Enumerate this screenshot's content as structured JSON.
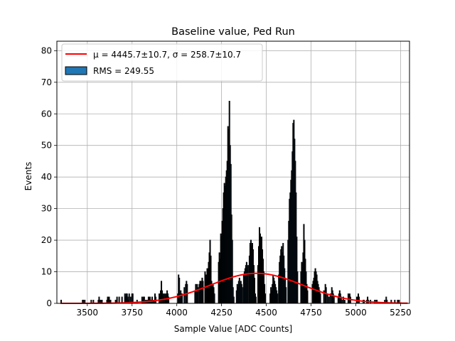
{
  "chart_data": {
    "type": "bar",
    "title": "Baseline value, Ped Run",
    "xlabel": "Sample Value [ADC Counts]",
    "ylabel": "Events",
    "xlim": [
      3330,
      5300
    ],
    "ylim": [
      0,
      83
    ],
    "xticks": [
      3500,
      3750,
      4000,
      4250,
      4500,
      4750,
      5000,
      5250
    ],
    "yticks": [
      0,
      10,
      20,
      30,
      40,
      50,
      60,
      70,
      80
    ],
    "grid": true,
    "legend_position": "top-left",
    "legend": [
      {
        "label": "μ = 4445.7±10.7, σ = 258.7±10.7",
        "kind": "line",
        "color": "#ff0000"
      },
      {
        "label": "RMS = 249.55",
        "kind": "patch",
        "color": "#1f77b4"
      }
    ],
    "fit": {
      "type": "gaussian",
      "mu": 4445.7,
      "mu_err": 10.7,
      "sigma": 258.7,
      "sigma_err": 10.7,
      "amplitude": 9.5,
      "color": "#ff0000"
    },
    "histogram": {
      "bin_width": 4,
      "fill_color": "#1f77b4",
      "edge_color": "#000000",
      "bins": [
        [
          3352,
          1
        ],
        [
          3356,
          0
        ],
        [
          3472,
          1
        ],
        [
          3476,
          1
        ],
        [
          3484,
          1
        ],
        [
          3520,
          1
        ],
        [
          3532,
          1
        ],
        [
          3560,
          1
        ],
        [
          3564,
          2
        ],
        [
          3572,
          1
        ],
        [
          3580,
          1
        ],
        [
          3608,
          1
        ],
        [
          3612,
          2
        ],
        [
          3620,
          2
        ],
        [
          3628,
          1
        ],
        [
          3656,
          1
        ],
        [
          3664,
          2
        ],
        [
          3676,
          2
        ],
        [
          3692,
          2
        ],
        [
          3708,
          3
        ],
        [
          3712,
          2
        ],
        [
          3716,
          3
        ],
        [
          3720,
          3
        ],
        [
          3724,
          2
        ],
        [
          3728,
          1
        ],
        [
          3732,
          3
        ],
        [
          3740,
          2
        ],
        [
          3748,
          3
        ],
        [
          3752,
          3
        ],
        [
          3776,
          1
        ],
        [
          3804,
          2
        ],
        [
          3808,
          1
        ],
        [
          3812,
          2
        ],
        [
          3816,
          2
        ],
        [
          3824,
          1
        ],
        [
          3832,
          1
        ],
        [
          3840,
          2
        ],
        [
          3848,
          2
        ],
        [
          3856,
          1
        ],
        [
          3860,
          2
        ],
        [
          3868,
          1
        ],
        [
          3876,
          3
        ],
        [
          3880,
          2
        ],
        [
          3900,
          3
        ],
        [
          3904,
          2
        ],
        [
          3908,
          4
        ],
        [
          3912,
          7
        ],
        [
          3916,
          4
        ],
        [
          3920,
          2
        ],
        [
          3924,
          3
        ],
        [
          3932,
          3
        ],
        [
          3936,
          2
        ],
        [
          3940,
          3
        ],
        [
          3944,
          4
        ],
        [
          3948,
          3
        ],
        [
          3952,
          2
        ],
        [
          4004,
          3
        ],
        [
          4008,
          9
        ],
        [
          4012,
          8
        ],
        [
          4016,
          3
        ],
        [
          4020,
          4
        ],
        [
          4024,
          3
        ],
        [
          4028,
          3
        ],
        [
          4040,
          5
        ],
        [
          4048,
          6
        ],
        [
          4052,
          7
        ],
        [
          4056,
          6
        ],
        [
          4100,
          4
        ],
        [
          4104,
          6
        ],
        [
          4108,
          4
        ],
        [
          4112,
          6
        ],
        [
          4116,
          5
        ],
        [
          4124,
          6
        ],
        [
          4128,
          7
        ],
        [
          4132,
          7
        ],
        [
          4136,
          5
        ],
        [
          4140,
          8
        ],
        [
          4144,
          7
        ],
        [
          4156,
          10
        ],
        [
          4164,
          9
        ],
        [
          4168,
          11
        ],
        [
          4172,
          8
        ],
        [
          4176,
          13
        ],
        [
          4180,
          16
        ],
        [
          4184,
          20
        ],
        [
          4188,
          15
        ],
        [
          4192,
          7
        ],
        [
          4196,
          5
        ],
        [
          4200,
          6
        ],
        [
          4204,
          5
        ],
        [
          4208,
          3
        ],
        [
          4232,
          13
        ],
        [
          4236,
          16
        ],
        [
          4240,
          14
        ],
        [
          4244,
          22
        ],
        [
          4248,
          21
        ],
        [
          4252,
          26
        ],
        [
          4256,
          30
        ],
        [
          4260,
          35
        ],
        [
          4264,
          38
        ],
        [
          4268,
          37
        ],
        [
          4272,
          40
        ],
        [
          4276,
          42
        ],
        [
          4280,
          45
        ],
        [
          4284,
          56
        ],
        [
          4288,
          55
        ],
        [
          4292,
          64
        ],
        [
          4296,
          50
        ],
        [
          4300,
          44
        ],
        [
          4304,
          28
        ],
        [
          4308,
          20
        ],
        [
          4312,
          5
        ],
        [
          4316,
          2
        ],
        [
          4332,
          4
        ],
        [
          4336,
          6
        ],
        [
          4340,
          5
        ],
        [
          4344,
          7
        ],
        [
          4348,
          8
        ],
        [
          4352,
          6
        ],
        [
          4356,
          7
        ],
        [
          4360,
          6
        ],
        [
          4364,
          5
        ],
        [
          4372,
          9
        ],
        [
          4376,
          10
        ],
        [
          4380,
          11
        ],
        [
          4384,
          12
        ],
        [
          4388,
          13
        ],
        [
          4392,
          11
        ],
        [
          4396,
          12
        ],
        [
          4404,
          15
        ],
        [
          4408,
          19
        ],
        [
          4412,
          20
        ],
        [
          4416,
          18
        ],
        [
          4420,
          19
        ],
        [
          4424,
          17
        ],
        [
          4428,
          12
        ],
        [
          4432,
          8
        ],
        [
          4436,
          3
        ],
        [
          4440,
          2
        ],
        [
          4452,
          12
        ],
        [
          4456,
          18
        ],
        [
          4460,
          24
        ],
        [
          4464,
          22
        ],
        [
          4468,
          19
        ],
        [
          4472,
          21
        ],
        [
          4476,
          17
        ],
        [
          4480,
          14
        ],
        [
          4484,
          10
        ],
        [
          4488,
          6
        ],
        [
          4492,
          3
        ],
        [
          4520,
          3
        ],
        [
          4524,
          5
        ],
        [
          4528,
          4
        ],
        [
          4532,
          6
        ],
        [
          4536,
          9
        ],
        [
          4540,
          8
        ],
        [
          4544,
          7
        ],
        [
          4548,
          6
        ],
        [
          4552,
          5
        ],
        [
          4556,
          4
        ],
        [
          4560,
          3
        ],
        [
          4568,
          9
        ],
        [
          4572,
          13
        ],
        [
          4576,
          15
        ],
        [
          4580,
          17
        ],
        [
          4584,
          18
        ],
        [
          4588,
          16
        ],
        [
          4592,
          19
        ],
        [
          4596,
          15
        ],
        [
          4600,
          11
        ],
        [
          4604,
          8
        ],
        [
          4608,
          5
        ],
        [
          4620,
          20
        ],
        [
          4624,
          26
        ],
        [
          4628,
          33
        ],
        [
          4632,
          35
        ],
        [
          4636,
          39
        ],
        [
          4640,
          42
        ],
        [
          4644,
          48
        ],
        [
          4648,
          57
        ],
        [
          4652,
          58
        ],
        [
          4656,
          52
        ],
        [
          4660,
          45
        ],
        [
          4664,
          35
        ],
        [
          4668,
          21
        ],
        [
          4672,
          10
        ],
        [
          4692,
          10
        ],
        [
          4696,
          13
        ],
        [
          4700,
          12
        ],
        [
          4704,
          16
        ],
        [
          4708,
          25
        ],
        [
          4712,
          20
        ],
        [
          4716,
          14
        ],
        [
          4720,
          10
        ],
        [
          4724,
          6
        ],
        [
          4728,
          4
        ],
        [
          4756,
          6
        ],
        [
          4760,
          7
        ],
        [
          4764,
          8
        ],
        [
          4768,
          10
        ],
        [
          4772,
          11
        ],
        [
          4776,
          10
        ],
        [
          4780,
          9
        ],
        [
          4784,
          7
        ],
        [
          4788,
          6
        ],
        [
          4792,
          5
        ],
        [
          4796,
          4
        ],
        [
          4800,
          3
        ],
        [
          4820,
          4
        ],
        [
          4828,
          6
        ],
        [
          4832,
          5
        ],
        [
          4840,
          3
        ],
        [
          4848,
          2
        ],
        [
          4856,
          3
        ],
        [
          4864,
          5
        ],
        [
          4868,
          4
        ],
        [
          4872,
          3
        ],
        [
          4876,
          2
        ],
        [
          4900,
          2
        ],
        [
          4904,
          3
        ],
        [
          4908,
          4
        ],
        [
          4912,
          3
        ],
        [
          4916,
          2
        ],
        [
          4920,
          1
        ],
        [
          4928,
          2
        ],
        [
          4936,
          1
        ],
        [
          4956,
          3
        ],
        [
          4960,
          2
        ],
        [
          4964,
          3
        ],
        [
          4968,
          2
        ],
        [
          5004,
          2
        ],
        [
          5012,
          3
        ],
        [
          5016,
          2
        ],
        [
          5040,
          1
        ],
        [
          5044,
          1
        ],
        [
          5060,
          1
        ],
        [
          5064,
          2
        ],
        [
          5068,
          1
        ],
        [
          5080,
          1
        ],
        [
          5104,
          1
        ],
        [
          5112,
          1
        ],
        [
          5116,
          1
        ],
        [
          5160,
          1
        ],
        [
          5168,
          2
        ],
        [
          5172,
          1
        ],
        [
          5196,
          1
        ],
        [
          5216,
          1
        ],
        [
          5232,
          1
        ],
        [
          5240,
          1
        ]
      ]
    }
  }
}
